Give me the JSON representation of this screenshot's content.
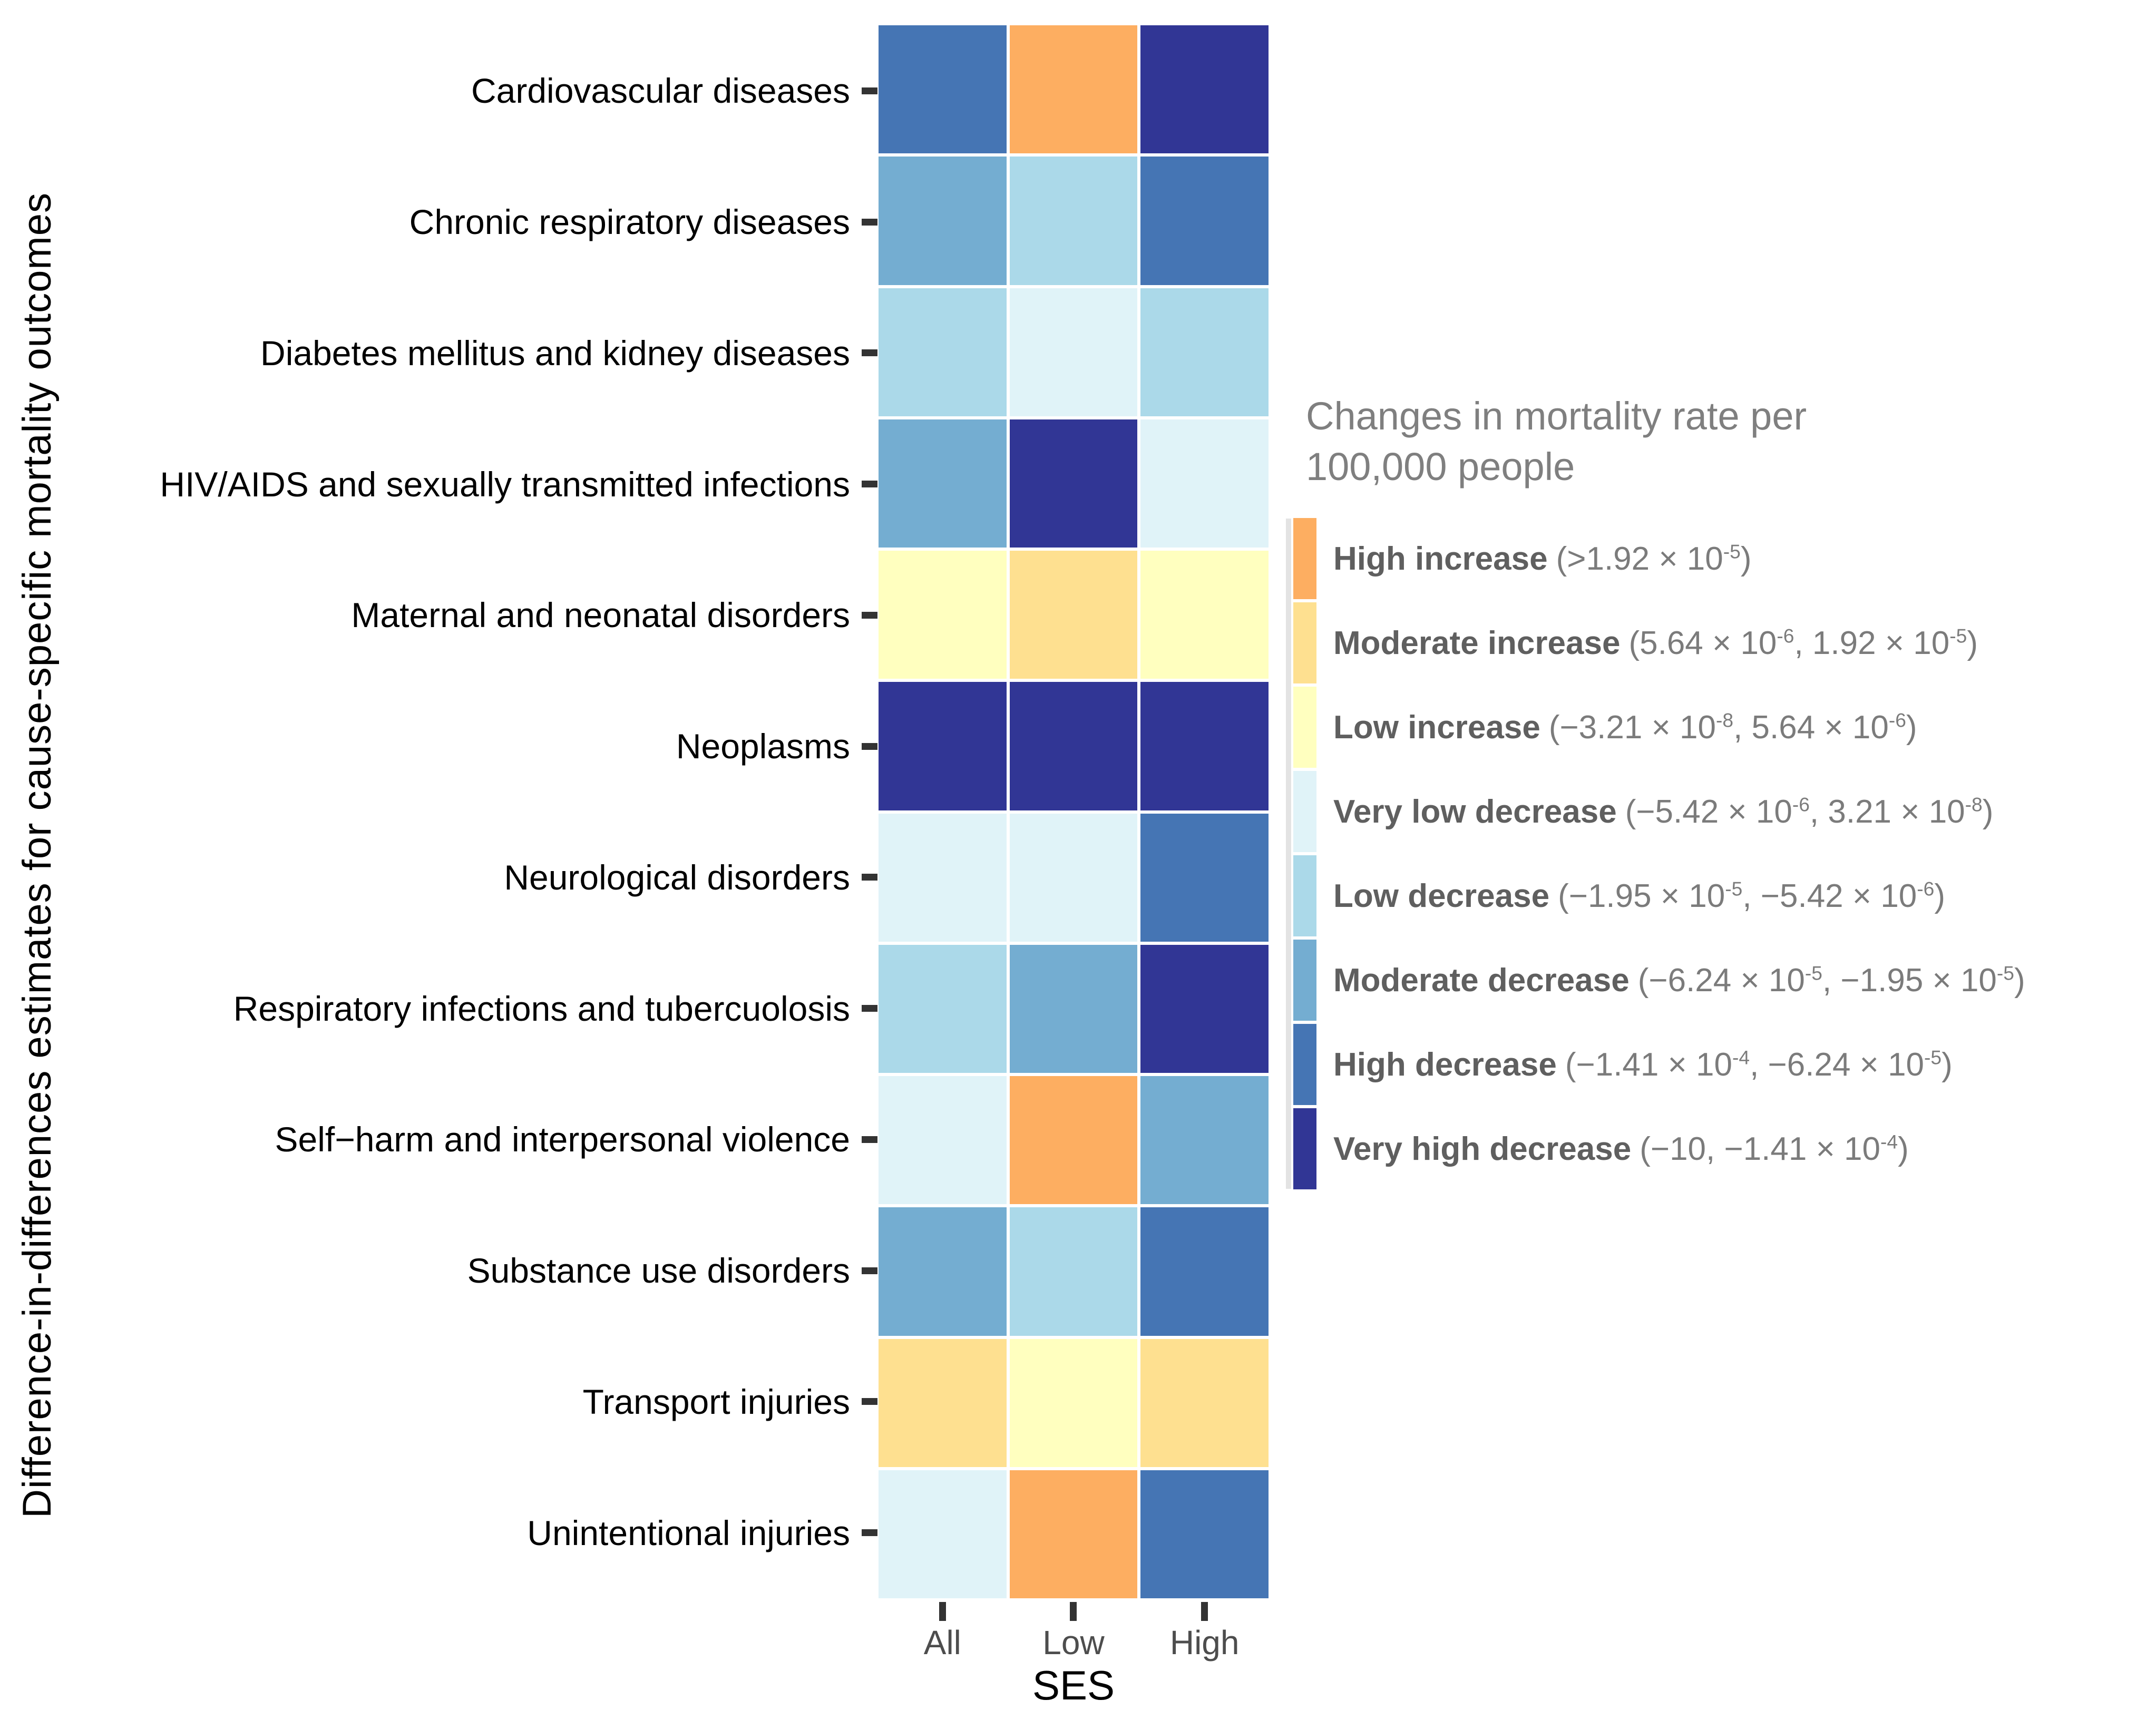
{
  "figure": {
    "legend": {
      "title_line1": "Changes in mortality rate per",
      "title_line2": "100,000 people",
      "entries": [
        {
          "name": "High increase",
          "color": "#fdae61",
          "level": "high_increase",
          "range_parts": [
            {
              "t": "(>1.92 × 10"
            },
            {
              "sup": "-5"
            },
            {
              "t": ")"
            }
          ]
        },
        {
          "name": "Moderate increase",
          "color": "#fee090",
          "level": "moderate_increase",
          "range_parts": [
            {
              "t": "(5.64 × 10"
            },
            {
              "sup": "-6"
            },
            {
              "t": ", 1.92 × 10"
            },
            {
              "sup": "-5"
            },
            {
              "t": ")"
            }
          ]
        },
        {
          "name": "Low increase",
          "color": "#ffffbf",
          "level": "low_increase",
          "range_parts": [
            {
              "t": "(−3.21 × 10"
            },
            {
              "sup": "-8"
            },
            {
              "t": ", 5.64 × 10"
            },
            {
              "sup": "-6"
            },
            {
              "t": ")"
            }
          ]
        },
        {
          "name": "Very low decrease",
          "color": "#e0f3f8",
          "level": "very_low_decrease",
          "range_parts": [
            {
              "t": "(−5.42 × 10"
            },
            {
              "sup": "-6"
            },
            {
              "t": ", 3.21 × 10"
            },
            {
              "sup": "-8"
            },
            {
              "t": ")"
            }
          ]
        },
        {
          "name": "Low decrease",
          "color": "#abd9e9",
          "level": "low_decrease",
          "range_parts": [
            {
              "t": "(−1.95 × 10"
            },
            {
              "sup": "-5"
            },
            {
              "t": ", −5.42 × 10"
            },
            {
              "sup": "-6"
            },
            {
              "t": ")"
            }
          ]
        },
        {
          "name": "Moderate decrease",
          "color": "#74add1",
          "level": "moderate_decrease",
          "range_parts": [
            {
              "t": "(−6.24 × 10"
            },
            {
              "sup": "-5"
            },
            {
              "t": ", −1.95 × 10"
            },
            {
              "sup": "-5"
            },
            {
              "t": ")"
            }
          ]
        },
        {
          "name": "High decrease",
          "color": "#4575b4",
          "level": "high_decrease",
          "range_parts": [
            {
              "t": "(−1.41 × 10"
            },
            {
              "sup": "-4"
            },
            {
              "t": ", −6.24 × 10"
            },
            {
              "sup": "-5"
            },
            {
              "t": ")"
            }
          ]
        },
        {
          "name": "Very high decrease",
          "color": "#313695",
          "level": "very_high_decrease",
          "range_parts": [
            {
              "t": "(−10, −1.41 × 10"
            },
            {
              "sup": "-4"
            },
            {
              "t": ")"
            }
          ]
        }
      ]
    }
  },
  "chart_data": {
    "type": "heatmap",
    "x": [
      "All",
      "Low",
      "High"
    ],
    "xlabel": "SES",
    "ylabel": "Difference-in-differences estimates for cause-specific mortality outcomes",
    "legend_title": "Changes in mortality rate per 100,000 people",
    "legend_position": "right",
    "palette": {
      "high_increase": "#fdae61",
      "moderate_increase": "#fee090",
      "low_increase": "#ffffbf",
      "very_low_decrease": "#e0f3f8",
      "low_decrease": "#abd9e9",
      "moderate_decrease": "#74add1",
      "high_decrease": "#4575b4",
      "very_high_decrease": "#313695"
    },
    "rows": [
      {
        "label": "Cardiovascular diseases",
        "cells": [
          "high_decrease",
          "high_increase",
          "very_high_decrease"
        ]
      },
      {
        "label": "Chronic respiratory diseases",
        "cells": [
          "moderate_decrease",
          "low_decrease",
          "high_decrease"
        ]
      },
      {
        "label": "Diabetes mellitus and kidney diseases",
        "cells": [
          "low_decrease",
          "very_low_decrease",
          "low_decrease"
        ]
      },
      {
        "label": "HIV/AIDS and sexually transmitted infections",
        "cells": [
          "moderate_decrease",
          "very_high_decrease",
          "very_low_decrease"
        ]
      },
      {
        "label": "Maternal and neonatal disorders",
        "cells": [
          "low_increase",
          "moderate_increase",
          "low_increase"
        ]
      },
      {
        "label": "Neoplasms",
        "cells": [
          "very_high_decrease",
          "very_high_decrease",
          "very_high_decrease"
        ]
      },
      {
        "label": "Neurological disorders",
        "cells": [
          "very_low_decrease",
          "very_low_decrease",
          "high_decrease"
        ]
      },
      {
        "label": "Respiratory infections and tubercuolosis",
        "cells": [
          "low_decrease",
          "moderate_decrease",
          "very_high_decrease"
        ]
      },
      {
        "label": "Self−harm and interpersonal violence",
        "cells": [
          "very_low_decrease",
          "high_increase",
          "moderate_decrease"
        ]
      },
      {
        "label": "Substance use disorders",
        "cells": [
          "moderate_decrease",
          "low_decrease",
          "high_decrease"
        ]
      },
      {
        "label": "Transport injuries",
        "cells": [
          "moderate_increase",
          "low_increase",
          "moderate_increase"
        ]
      },
      {
        "label": "Unintentional injuries",
        "cells": [
          "very_low_decrease",
          "high_increase",
          "high_decrease"
        ]
      }
    ]
  }
}
